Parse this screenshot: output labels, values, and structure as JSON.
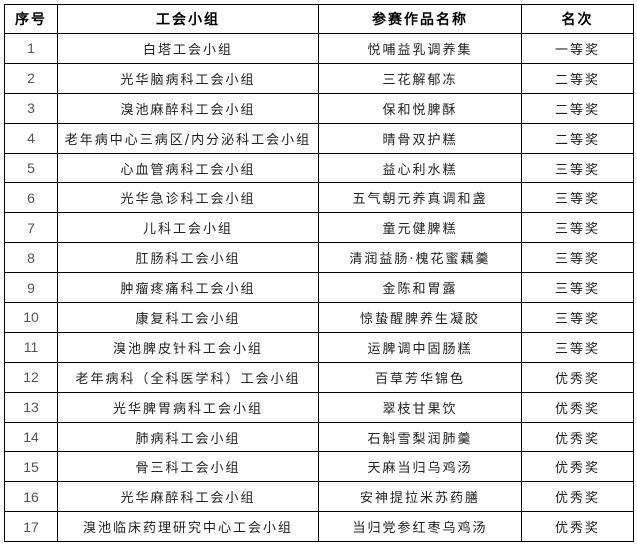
{
  "table": {
    "headers": [
      "序号",
      "工会小组",
      "参赛作品名称",
      "名次"
    ],
    "rows": [
      [
        "1",
        "白塔工会小组",
        "悦哺益乳调养集",
        "一等奖"
      ],
      [
        "2",
        "光华脑病科工会小组",
        "三花解郁冻",
        "二等奖"
      ],
      [
        "3",
        "溴池麻醉科工会小组",
        "保和悦脾酥",
        "二等奖"
      ],
      [
        "4",
        "老年病中心三病区/内分泌科工会小组",
        "晴骨双护糕",
        "二等奖"
      ],
      [
        "5",
        "心血管病科工会小组",
        "益心利水糕",
        "三等奖"
      ],
      [
        "6",
        "光华急诊科工会小组",
        "五气朝元养真调和盏",
        "三等奖"
      ],
      [
        "7",
        "儿科工会小组",
        "童元健脾糕",
        "三等奖"
      ],
      [
        "8",
        "肛肠科工会小组",
        "清润益肠·槐花蜜藕羹",
        "三等奖"
      ],
      [
        "9",
        "肿瘤疼痛科工会小组",
        "金陈和胃露",
        "三等奖"
      ],
      [
        "10",
        "康复科工会小组",
        "惊蛰醒脾养生凝胶",
        "三等奖"
      ],
      [
        "11",
        "溴池脾皮针科工会小组",
        "运脾调中固肠糕",
        "三等奖"
      ],
      [
        "12",
        "老年病科（全科医学科）工会小组",
        "百草芳华锦色",
        "优秀奖"
      ],
      [
        "13",
        "光华脾胃病科工会小组",
        "翠枝甘果饮",
        "优秀奖"
      ],
      [
        "14",
        "肺病科工会小组",
        "石斛雪梨润肺羹",
        "优秀奖"
      ],
      [
        "15",
        "骨三科工会小组",
        "天麻当归乌鸡汤",
        "优秀奖"
      ],
      [
        "16",
        "光华麻醉科工会小组",
        "安神提拉米苏药膳",
        "优秀奖"
      ],
      [
        "17",
        "溴池临床药理研究中心工会小组",
        "当归党参红枣乌鸡汤",
        "优秀奖"
      ]
    ]
  }
}
